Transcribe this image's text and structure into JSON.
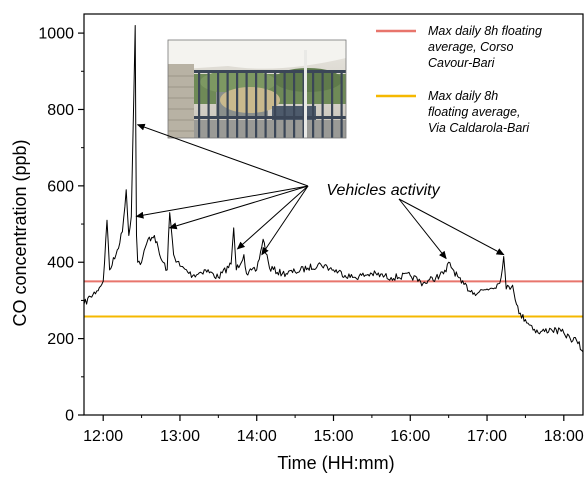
{
  "chart_data": {
    "type": "line",
    "xlabel": "Time (HH:mm)",
    "ylabel": "CO concentration (ppb)",
    "xlim": [
      "11:45",
      "18:15"
    ],
    "ylim": [
      0,
      1050
    ],
    "x_ticks": [
      "12:00",
      "13:00",
      "14:00",
      "15:00",
      "16:00",
      "17:00",
      "18:00"
    ],
    "y_ticks": [
      0,
      200,
      400,
      600,
      800,
      1000
    ],
    "grid": false,
    "legend_position": "top-right",
    "series": [
      {
        "type": "line",
        "color": "#000000",
        "x": [
          "11:45",
          "11:50",
          "11:55",
          "12:00",
          "12:03",
          "12:05",
          "12:10",
          "12:15",
          "12:18",
          "12:20",
          "12:22",
          "12:25",
          "12:26",
          "12:27",
          "12:30",
          "12:35",
          "12:40",
          "12:45",
          "12:50",
          "12:52",
          "12:55",
          "13:00",
          "13:10",
          "13:20",
          "13:30",
          "13:40",
          "13:42",
          "13:44",
          "13:50",
          "13:52",
          "14:00",
          "14:05",
          "14:10",
          "14:20",
          "14:30",
          "14:40",
          "14:50",
          "15:00",
          "15:15",
          "15:30",
          "15:45",
          "16:00",
          "16:10",
          "16:20",
          "16:28",
          "16:30",
          "16:40",
          "16:50",
          "17:00",
          "17:10",
          "17:13",
          "17:15",
          "17:20",
          "17:25",
          "17:30",
          "17:40",
          "17:50",
          "18:00",
          "18:05",
          "18:10",
          "18:15"
        ],
        "y": [
          290,
          310,
          325,
          350,
          510,
          380,
          420,
          480,
          590,
          470,
          520,
          1020,
          470,
          400,
          400,
          460,
          470,
          410,
          380,
          530,
          420,
          390,
          365,
          380,
          360,
          395,
          490,
          380,
          420,
          370,
          380,
          460,
          385,
          370,
          375,
          385,
          395,
          380,
          360,
          370,
          360,
          365,
          345,
          360,
          375,
          400,
          345,
          320,
          330,
          345,
          415,
          330,
          340,
          265,
          250,
          215,
          225,
          215,
          200,
          195,
          165
        ]
      },
      {
        "name": "Max daily 8h floating average, Corso Cavour-Bari",
        "type": "hline",
        "color": "#e8756c",
        "y": 350
      },
      {
        "name": "Max daily 8h floating average, Via Caldarola-Bari",
        "type": "hline",
        "color": "#f5b800",
        "y": 258
      }
    ],
    "annotation": {
      "text": "Vehicles activity",
      "targets": [
        {
          "x": "12:27",
          "y": 760
        },
        {
          "x": "12:26",
          "y": 520
        },
        {
          "x": "12:52",
          "y": 490
        },
        {
          "x": "13:45",
          "y": 435
        },
        {
          "x": "14:04",
          "y": 420
        },
        {
          "x": "16:28",
          "y": 410
        },
        {
          "x": "17:13",
          "y": 420
        }
      ]
    }
  }
}
